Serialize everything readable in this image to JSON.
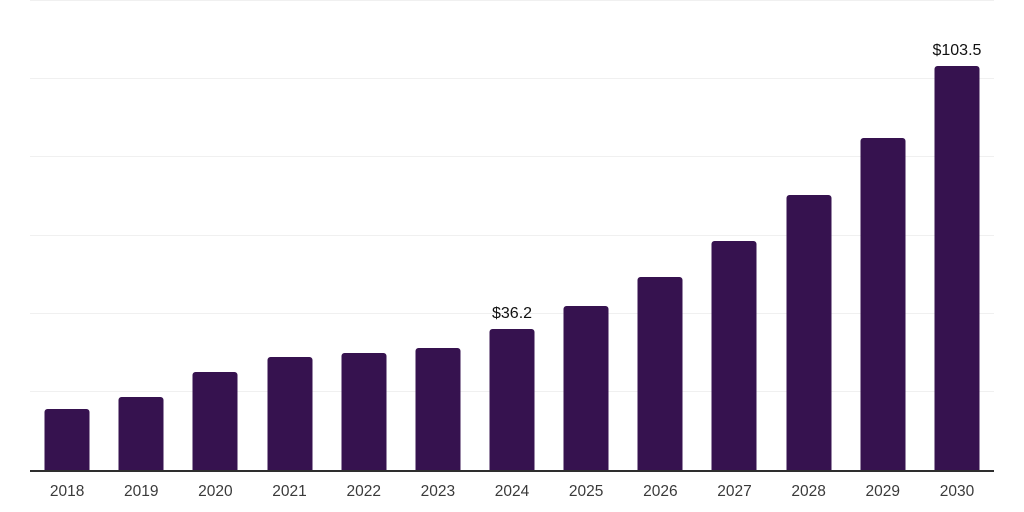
{
  "chart_data": {
    "type": "bar",
    "title": "",
    "xlabel": "",
    "ylabel": "",
    "categories": [
      "2018",
      "2019",
      "2020",
      "2021",
      "2022",
      "2023",
      "2024",
      "2025",
      "2026",
      "2027",
      "2028",
      "2029",
      "2030"
    ],
    "values": [
      15.5,
      18.6,
      25.0,
      28.9,
      30.0,
      31.2,
      36.2,
      42.0,
      49.4,
      58.7,
      70.4,
      85.0,
      103.5
    ],
    "data_labels": [
      "",
      "",
      "",
      "",
      "",
      "",
      "$36.2",
      "",
      "",
      "",
      "",
      "",
      "$103.5"
    ],
    "ylim": [
      0,
      120
    ],
    "grid_step": 20,
    "grid": "horizontal",
    "legend_position": "none",
    "bar_color": "#36124F",
    "axis_line_color": "#2e2e2e",
    "gridline_color": "#f0f0f0",
    "tick_label_color": "#3a3a3a",
    "data_label_color": "#111111",
    "background_color": "#ffffff"
  }
}
